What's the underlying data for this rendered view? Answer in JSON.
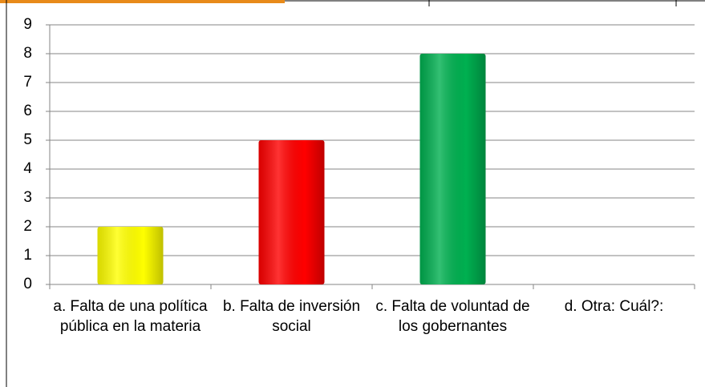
{
  "chart_data": {
    "type": "bar",
    "categories": [
      "a. Falta de una política pública en la materia",
      "b. Falta de inversión social",
      "c. Falta de voluntad de los gobernantes",
      "d. Otra: Cuál?:"
    ],
    "values": [
      2,
      5,
      8,
      0
    ],
    "colors": [
      "#ffff00",
      "#ff0000",
      "#00b050",
      "#4472c4"
    ],
    "ylim": [
      0,
      9
    ],
    "yticks": [
      0,
      1,
      2,
      3,
      4,
      5,
      6,
      7,
      8,
      9
    ],
    "grid": true
  }
}
